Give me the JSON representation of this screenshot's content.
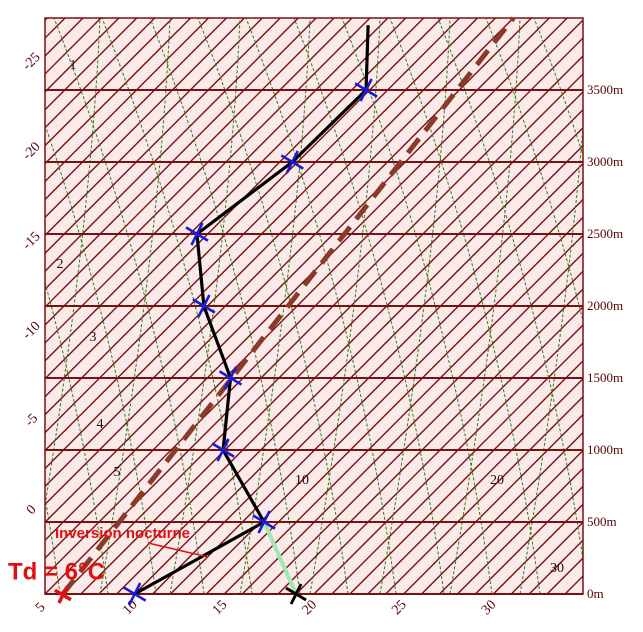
{
  "chart_data": {
    "type": "skewt",
    "ylim": [
      0,
      4000
    ],
    "yticks": [
      {
        "value": 0,
        "label": "0m"
      },
      {
        "value": 500,
        "label": "500m"
      },
      {
        "value": 1000,
        "label": "1000m"
      },
      {
        "value": 1500,
        "label": "1500m"
      },
      {
        "value": 2000,
        "label": "2000m"
      },
      {
        "value": 2500,
        "label": "2500m"
      },
      {
        "value": 3000,
        "label": "3000m"
      },
      {
        "value": 3500,
        "label": "3500m"
      }
    ],
    "xlim": [
      5,
      35
    ],
    "xticks": [
      5,
      10,
      15,
      20,
      25,
      30
    ],
    "left_isotherm_ticks": [
      0,
      -5,
      -10,
      -15,
      -20,
      -25
    ],
    "grid_color": "#7a1010",
    "curve_labels": [
      "1",
      "2",
      "3",
      "4",
      "5",
      "10",
      "20",
      "30"
    ],
    "profile": {
      "color": "#000000",
      "marker_color": "#1a1ad8",
      "heights": [
        0,
        500,
        1000,
        1500,
        2000,
        2500,
        3000,
        3500,
        3950
      ],
      "values": [
        10,
        13.2,
        6.9,
        3.3,
        -2.2,
        -6.6,
        -5.3,
        -5.2,
        -8.7
      ],
      "marked": [
        true,
        true,
        true,
        true,
        true,
        true,
        true,
        true,
        false
      ]
    },
    "surface_heating": {
      "color": "#9ee8b4",
      "heights": [
        500,
        0
      ],
      "values": [
        13.2,
        19
      ]
    },
    "mixing_line": {
      "color": "#8b3a2a",
      "heights": [
        0,
        4000
      ],
      "values": [
        6,
        -1
      ]
    },
    "dewpoint": {
      "label": "Td = 6°C",
      "value": 6,
      "color": "#e01010"
    },
    "annotation": {
      "text": "Inversion nocturne",
      "color": "#e01010"
    }
  }
}
